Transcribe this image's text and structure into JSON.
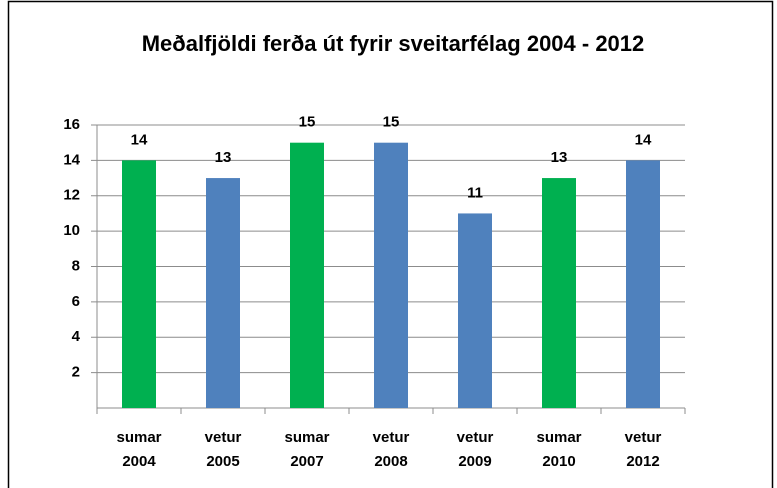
{
  "chart_data": {
    "type": "bar",
    "title": "Meðalfjöldi ferða út fyrir sveitarfélag 2004 - 2012",
    "categories": [
      [
        "sumar",
        "2004"
      ],
      [
        "vetur",
        "2005"
      ],
      [
        "sumar",
        "2007"
      ],
      [
        "vetur",
        "2008"
      ],
      [
        "vetur",
        "2009"
      ],
      [
        "sumar",
        "2010"
      ],
      [
        "vetur",
        "2012"
      ]
    ],
    "values": [
      14,
      13,
      15,
      15,
      11,
      13,
      14
    ],
    "colors": [
      "#00b050",
      "#4f81bd",
      "#00b050",
      "#4f81bd",
      "#4f81bd",
      "#00b050",
      "#4f81bd"
    ],
    "ylim": [
      0,
      16
    ],
    "yticks": [
      2,
      4,
      6,
      8,
      10,
      12,
      14,
      16
    ],
    "grid": true
  }
}
